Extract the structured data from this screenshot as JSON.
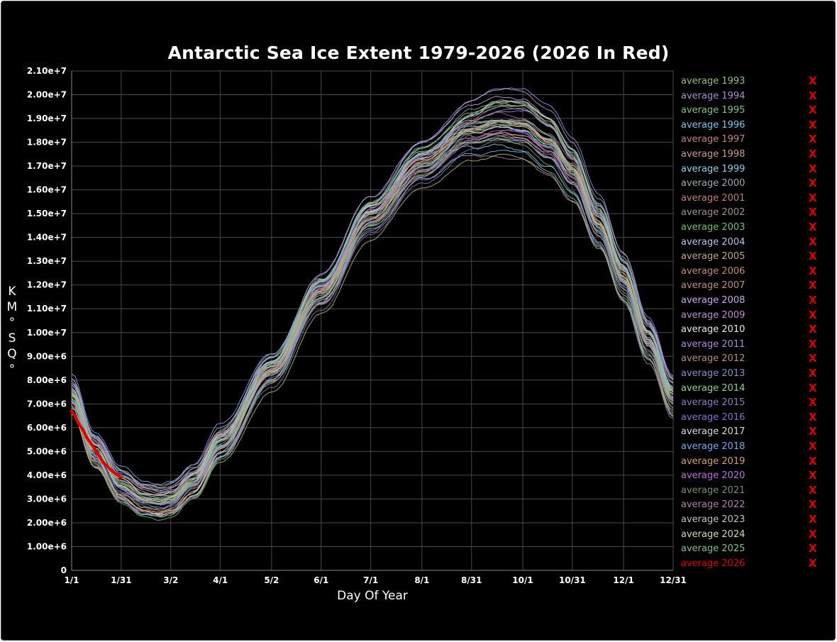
{
  "chart_data": {
    "type": "line",
    "title": "Antarctic Sea Ice Extent 1979-2026 (2026 In Red)",
    "xlabel": "Day Of Year",
    "ylabel": "K M ° S Q °",
    "ylim": [
      0,
      21000000
    ],
    "xlim": [
      1,
      365
    ],
    "y_ticks": [
      "0",
      "1.00e+6",
      "2.00e+6",
      "3.00e+6",
      "4.00e+6",
      "5.00e+6",
      "6.00e+6",
      "7.00e+6",
      "8.00e+6",
      "9.00e+6",
      "1.00e+7",
      "1.10e+7",
      "1.20e+7",
      "1.30e+7",
      "1.40e+7",
      "1.50e+7",
      "1.60e+7",
      "1.70e+7",
      "1.80e+7",
      "1.90e+7",
      "2.00e+7",
      "2.10e+7"
    ],
    "x_ticks": [
      {
        "label": "1/1",
        "day": 1
      },
      {
        "label": "1/31",
        "day": 31
      },
      {
        "label": "3/2",
        "day": 61
      },
      {
        "label": "4/1",
        "day": 91
      },
      {
        "label": "5/2",
        "day": 122
      },
      {
        "label": "6/1",
        "day": 152
      },
      {
        "label": "7/1",
        "day": 182
      },
      {
        "label": "8/1",
        "day": 213
      },
      {
        "label": "8/31",
        "day": 243
      },
      {
        "label": "10/1",
        "day": 274
      },
      {
        "label": "10/31",
        "day": 304
      },
      {
        "label": "12/1",
        "day": 335
      },
      {
        "label": "12/31",
        "day": 365
      }
    ],
    "climatology_keypoints": {
      "day": [
        1,
        15,
        31,
        45,
        55,
        61,
        75,
        91,
        122,
        152,
        182,
        213,
        243,
        260,
        274,
        290,
        304,
        320,
        335,
        350,
        365
      ],
      "extent": [
        7300000,
        5000000,
        3500000,
        2950000,
        2850000,
        2950000,
        3700000,
        5300000,
        8400000,
        11700000,
        14900000,
        17100000,
        18500000,
        18800000,
        18700000,
        18000000,
        16800000,
        14600000,
        12300000,
        9700000,
        7300000
      ]
    },
    "series_2026": {
      "name": "average 2026",
      "color": "#e00000",
      "day": [
        1,
        3,
        5,
        8,
        10,
        13,
        15,
        18,
        20,
        23,
        25,
        28,
        31
      ],
      "values": [
        6700000,
        6500000,
        6200000,
        5900000,
        5600000,
        5300000,
        5100000,
        4800000,
        4550000,
        4350000,
        4200000,
        4050000,
        3900000
      ]
    },
    "legend": [
      {
        "label": "average 1993",
        "color": "#8fbf7a"
      },
      {
        "label": "average 1994",
        "color": "#a58fd0"
      },
      {
        "label": "average 1995",
        "color": "#7fc08f"
      },
      {
        "label": "average 1996",
        "color": "#7fc8ee"
      },
      {
        "label": "average 1997",
        "color": "#c07f7f"
      },
      {
        "label": "average 1998",
        "color": "#c89a8a"
      },
      {
        "label": "average 1999",
        "color": "#8fd0ee"
      },
      {
        "label": "average 2000",
        "color": "#9aa7b0"
      },
      {
        "label": "average 2001",
        "color": "#c08070"
      },
      {
        "label": "average 2002",
        "color": "#9a8f8f"
      },
      {
        "label": "average 2003",
        "color": "#70c070"
      },
      {
        "label": "average 2004",
        "color": "#c0c0f0"
      },
      {
        "label": "average 2005",
        "color": "#c0a58a"
      },
      {
        "label": "average 2006",
        "color": "#c88a6a"
      },
      {
        "label": "average 2007",
        "color": "#c0907a"
      },
      {
        "label": "average 2008",
        "color": "#c8a8f0"
      },
      {
        "label": "average 2009",
        "color": "#c08ad0"
      },
      {
        "label": "average 2010",
        "color": "#e8e8e8"
      },
      {
        "label": "average 2011",
        "color": "#a88ad8"
      },
      {
        "label": "average 2012",
        "color": "#b09070"
      },
      {
        "label": "average 2013",
        "color": "#7f90c8"
      },
      {
        "label": "average 2014",
        "color": "#8fd08f"
      },
      {
        "label": "average 2015",
        "color": "#7f80c0"
      },
      {
        "label": "average 2016",
        "color": "#8070d0"
      },
      {
        "label": "average 2017",
        "color": "#d8d8d8"
      },
      {
        "label": "average 2018",
        "color": "#70a8f0"
      },
      {
        "label": "average 2019",
        "color": "#d0a070"
      },
      {
        "label": "average 2020",
        "color": "#c070e0"
      },
      {
        "label": "average 2021",
        "color": "#709070"
      },
      {
        "label": "average 2022",
        "color": "#b080b0"
      },
      {
        "label": "average 2023",
        "color": "#c0c0c0"
      },
      {
        "label": "average 2024",
        "color": "#d8d8a8"
      },
      {
        "label": "average 2025",
        "color": "#80c080"
      },
      {
        "label": "average 2026",
        "color": "#e00000"
      }
    ],
    "remove_marker": "X"
  }
}
